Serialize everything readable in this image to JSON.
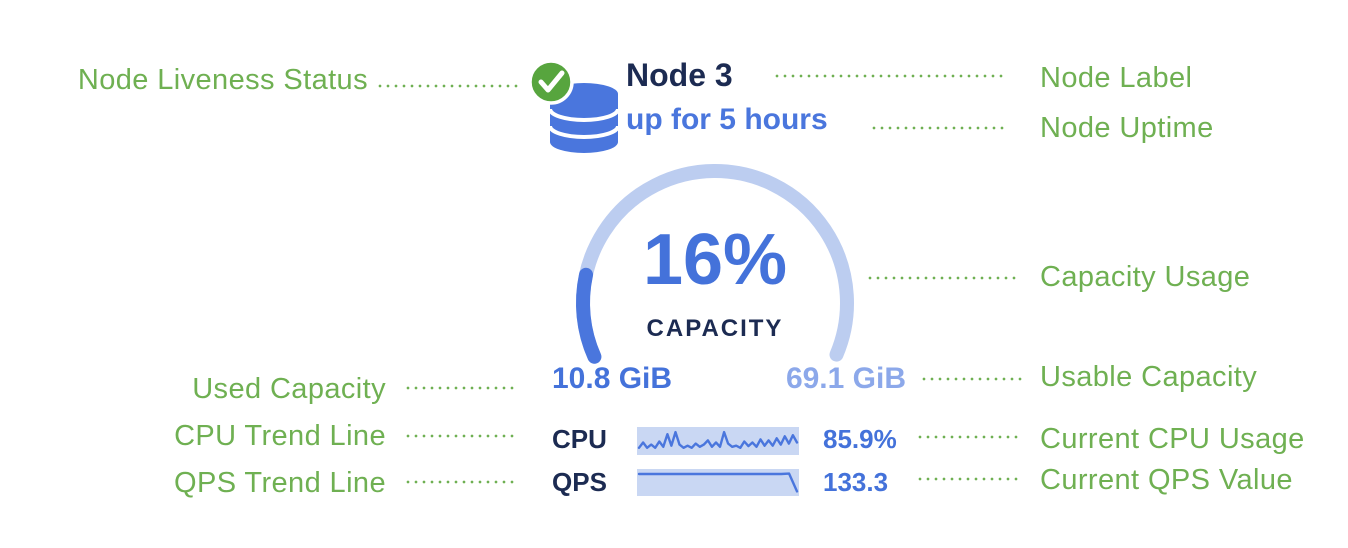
{
  "colors": {
    "annotation_green": "#6fb052",
    "status_green": "#57a53e",
    "navy": "#1c2b52",
    "primary_blue": "#4a76dd",
    "value_blue": "#4472da",
    "gauge_track_blue": "#bccdf0",
    "usable_blue": "#8ca8ea",
    "spark_bg_blue": "#c9d7f3",
    "background": "#ffffff"
  },
  "node_card": {
    "label": "Node 3",
    "uptime": "up for 5 hours",
    "liveness_status_icon": "green-check-icon",
    "node_icon": "database-icon",
    "capacity_percent": "16%",
    "capacity_caption": "CAPACITY",
    "used_capacity": "10.8 GiB",
    "usable_capacity": "69.1 GiB",
    "cpu": {
      "label": "CPU",
      "value": "85.9%"
    },
    "qps": {
      "label": "QPS",
      "value": "133.3"
    }
  },
  "annotations": {
    "left": [
      {
        "label": "Node Liveness Status"
      },
      {
        "label": "Used Capacity"
      },
      {
        "label": "CPU Trend Line"
      },
      {
        "label": "QPS Trend Line"
      }
    ],
    "right": [
      {
        "label": "Node Label"
      },
      {
        "label": "Node Uptime"
      },
      {
        "label": "Capacity Usage"
      },
      {
        "label": "Usable Capacity"
      },
      {
        "label": "Current CPU Usage"
      },
      {
        "label": "Current QPS Value"
      }
    ]
  },
  "chart_data": [
    {
      "type": "gauge",
      "title": "CAPACITY",
      "percent": 16,
      "used_label": "10.8 GiB",
      "usable_label": "69.1 GiB",
      "used_gib": 10.8,
      "usable_gib": 69.1,
      "arc_sweep_deg": 227
    },
    {
      "type": "line",
      "name": "CPU trend",
      "current_value": "85.9%",
      "points_norm": [
        0.2,
        0.45,
        0.2,
        0.35,
        0.2,
        0.5,
        0.25,
        0.85,
        0.3,
        0.95,
        0.35,
        0.2,
        0.3,
        0.2,
        0.4,
        0.25,
        0.35,
        0.55,
        0.25,
        0.45,
        0.25,
        0.95,
        0.4,
        0.25,
        0.3,
        0.2,
        0.5,
        0.28,
        0.45,
        0.25,
        0.6,
        0.3,
        0.55,
        0.3,
        0.65,
        0.35,
        0.75,
        0.4,
        0.8,
        0.45
      ]
    },
    {
      "type": "line",
      "name": "QPS trend",
      "current_value": "133.3",
      "points_norm": [
        0.95,
        0.95,
        0.95,
        0.95,
        0.95,
        0.95,
        0.95,
        0.95,
        0.95,
        0.95,
        0.95,
        0.95,
        0.95,
        0.95,
        0.95,
        0.95,
        0.95,
        0.95,
        0.95,
        0.97,
        0.08
      ]
    }
  ]
}
